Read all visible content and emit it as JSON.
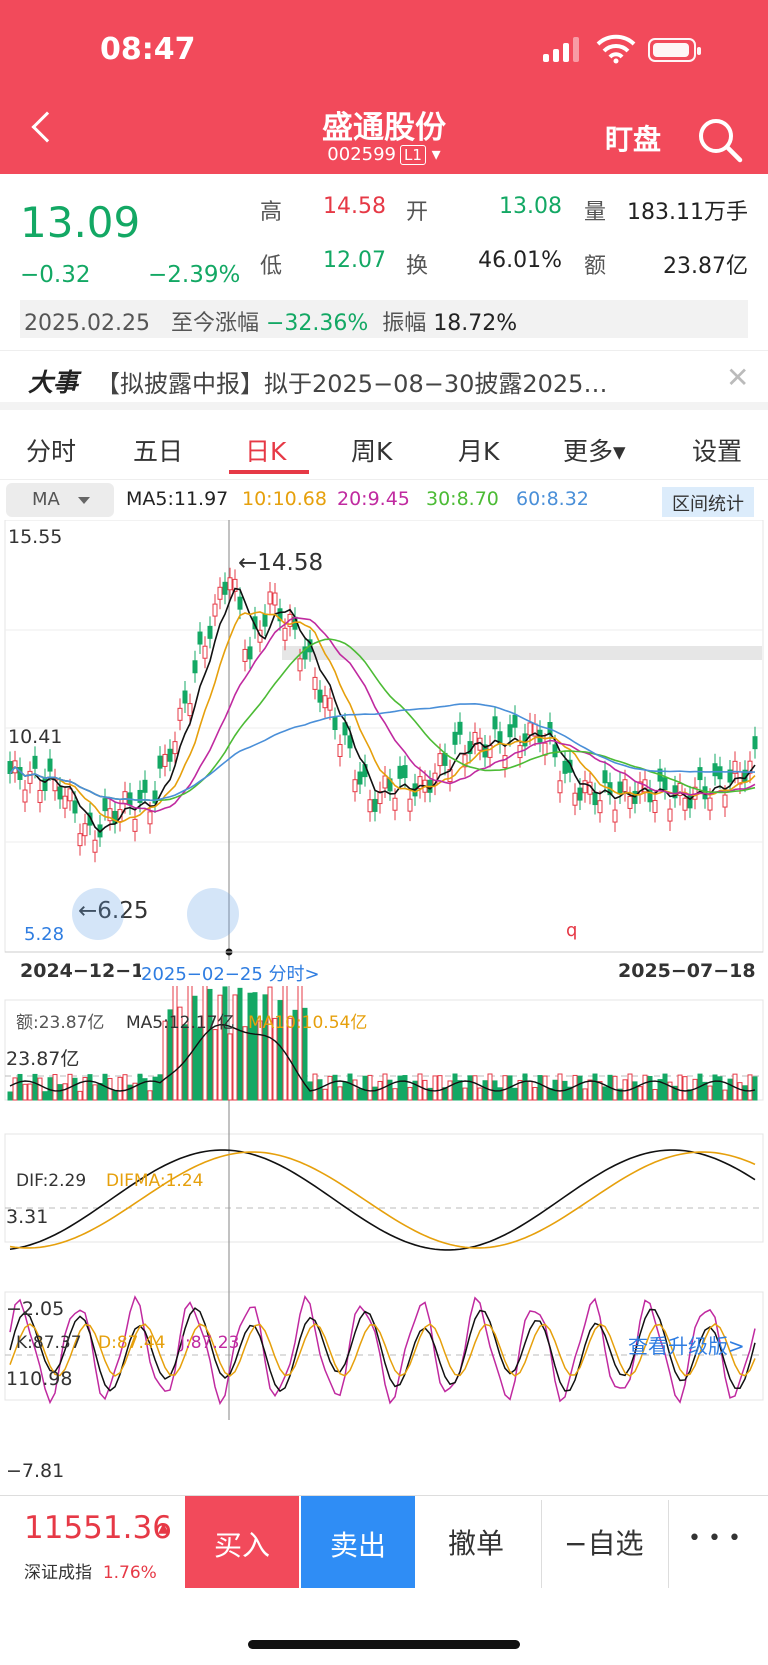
{
  "status": {
    "time": "08:47"
  },
  "header": {
    "title": "盛通股份",
    "code": "002599",
    "level": "L1",
    "watch": "盯盘"
  },
  "quote": {
    "price": "13.09",
    "change": "−0.32",
    "pct": "−2.39%",
    "high_l": "高",
    "high": "14.58",
    "open_l": "开",
    "open": "13.08",
    "vol_l": "量",
    "vol": "183.11万手",
    "low_l": "低",
    "low": "12.07",
    "turn_l": "换",
    "turn": "46.01%",
    "amt_l": "额",
    "amt": "23.87亿",
    "date": "2025.02.25",
    "since_l": "至今涨幅",
    "since": "−32.36%",
    "amp_l": "振幅",
    "amp": "18.72%"
  },
  "news": {
    "tag": "大事",
    "text": "【拟披露中报】拟于2025−08−30披露2025…"
  },
  "tabs": [
    "分时",
    "五日",
    "日K",
    "周K",
    "月K",
    "更多▾",
    "设置"
  ],
  "ma": {
    "btn": "MA",
    "ma5": "MA5:11.97",
    "ma10": "10:10.68",
    "ma20": "20:9.45",
    "ma30": "30:8.70",
    "ma60": "60:8.32",
    "stat": "区间统计"
  },
  "kline": {
    "ymax": "15.55",
    "ymid": "10.41",
    "hi_mark": "14.58",
    "lo_mark": "6.25",
    "ymin": "5.28",
    "d_start": "2024−12−1",
    "d_cursor": "2025−02−25 分时>",
    "d_end": "2025−07−18",
    "q": "q"
  },
  "volume": {
    "amt": "额:23.87亿",
    "ma5": "MA5:12.17亿",
    "ma10": "MA10:10.54亿",
    "ymax": "23.87亿"
  },
  "macd": {
    "dif": "DIF:2.29",
    "difma": "DIFMA:1.24",
    "ymax": "3.31",
    "ymin": "−2.05"
  },
  "kdj": {
    "k": "K:87.37",
    "d": "D:87.44",
    "j": "J:87.23",
    "upgrade": "查看升级版>",
    "ymax": "110.98",
    "ymin": "−7.81"
  },
  "bottom": {
    "index": "11551.36",
    "index_name": "深证成指",
    "index_pct": "1.76%",
    "buy": "买入",
    "sell": "卖出",
    "cancel": "撤单",
    "fav": "−自选",
    "more": "• • •"
  },
  "colors": {
    "red": "#e63946",
    "green": "#13a864",
    "ma5": "#111111",
    "ma10": "#e6a00c",
    "ma20": "#c02aa0",
    "ma30": "#4cbb35",
    "ma60": "#4a8fd8"
  }
}
